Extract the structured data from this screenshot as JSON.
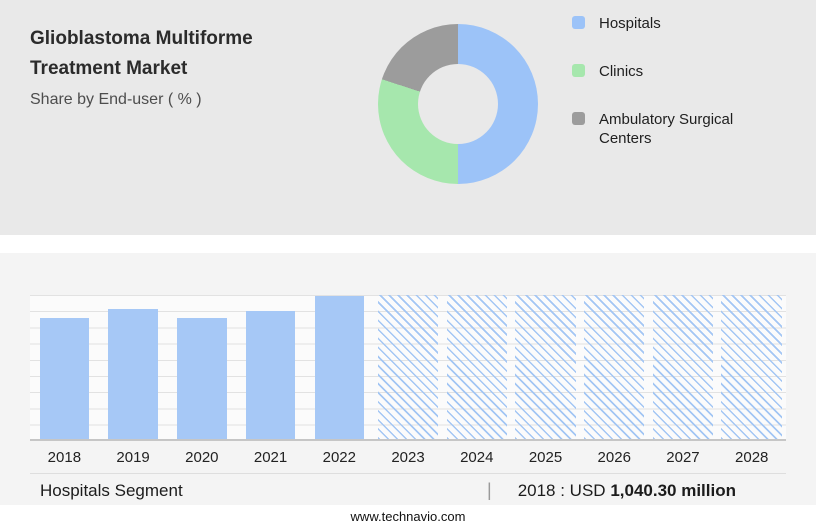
{
  "header": {
    "title_line1": "Glioblastoma Multiforme",
    "title_line2": "Treatment Market",
    "subtitle": "Share by End-user ( % )"
  },
  "caption": {
    "segment_label": "Hospitals Segment",
    "separator": "|",
    "value_prefix": "2018 : USD",
    "value_bold": "1,040.30 million"
  },
  "footer": {
    "website": "www.technavio.com"
  },
  "colors": {
    "hospitals_blue": "#9cc3f8",
    "clinics_green": "#a6e7ad",
    "ambulatory_gray": "#9c9c9c",
    "top_panel_bg": "#e9e9e9",
    "bottom_panel_bg": "#f4f4f4"
  },
  "chart_data": [
    {
      "type": "pie",
      "donut": true,
      "title": "Glioblastoma Multiforme Treatment Market - Share by End-user ( % )",
      "labels": [
        "Hospitals",
        "Clinics",
        "Ambulatory Surgical Centers"
      ],
      "values": [
        50,
        30,
        20
      ],
      "colors": [
        "#9cc3f8",
        "#a6e7ad",
        "#9c9c9c"
      ],
      "legend_position": "right"
    },
    {
      "type": "bar",
      "title": "Hospitals Segment market size by year",
      "categories": [
        "2018",
        "2019",
        "2020",
        "2021",
        "2022",
        "2023",
        "2024",
        "2025",
        "2026",
        "2027",
        "2028"
      ],
      "values": [
        84,
        90,
        84,
        89,
        99,
        100,
        100,
        100,
        100,
        100,
        100
      ],
      "value_note": "relative bar heights (y-axis unlabeled); 2018 value shown as USD 1,040.30 million",
      "forecast_start": "2023",
      "forecast_style": "diagonal-hatch",
      "bar_color": "#a6c8f6",
      "xlabel": "",
      "ylabel": "",
      "ylim": [
        0,
        100
      ],
      "grid": true,
      "legend_position": "none"
    }
  ]
}
